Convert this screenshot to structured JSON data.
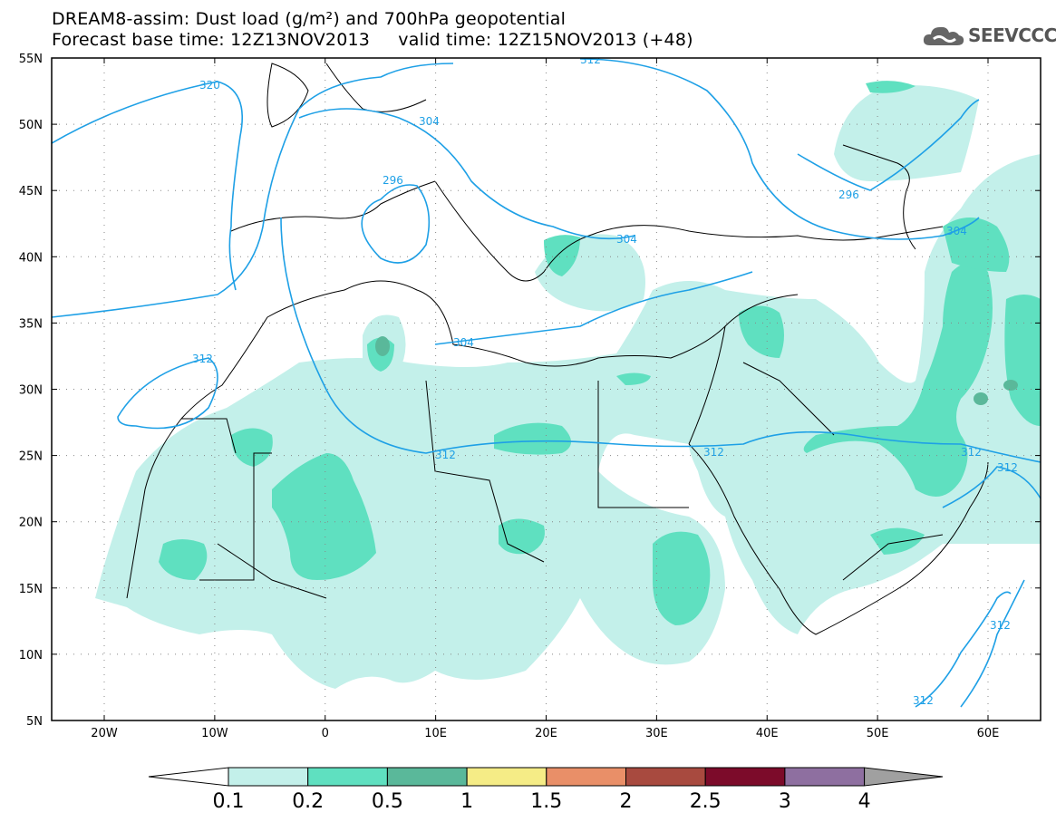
{
  "title": {
    "line1": "DREAM8-assim: Dust load (g/m²) and 700hPa geopotential",
    "line2": "Forecast base time: 12Z13NOV2013     valid time: 12Z15NOV2013 (+48)"
  },
  "logo": {
    "text": "SEEVCCC",
    "icon": "cloud-icon"
  },
  "axes": {
    "lat_labels": [
      "55N",
      "50N",
      "45N",
      "40N",
      "35N",
      "30N",
      "25N",
      "20N",
      "15N",
      "10N",
      "5N"
    ],
    "lon_labels": [
      "20W",
      "10W",
      "0",
      "10E",
      "20E",
      "30E",
      "40E",
      "50E",
      "60E"
    ]
  },
  "contours": {
    "labels": [
      "320",
      "304",
      "296",
      "304",
      "304",
      "312",
      "312",
      "312",
      "312",
      "296",
      "304",
      "312",
      "312",
      "312",
      "312"
    ]
  },
  "colorbar": {
    "ticks": [
      "0.1",
      "0.2",
      "0.5",
      "1",
      "1.5",
      "2",
      "2.5",
      "3",
      "4"
    ],
    "colors": [
      "#ffffff",
      "#c3f0ea",
      "#5fe0c0",
      "#5ab89a",
      "#f5ec86",
      "#e98f68",
      "#a84a3f",
      "#7c0b2a",
      "#8e6fa0",
      "#a0a0a0"
    ]
  },
  "map_colors": {
    "dust_light": "#c3f0ea",
    "dust_medium": "#5fe0c0",
    "dust_heavy": "#5ab89a",
    "contour": "#1ea0e6",
    "coast": "#000000"
  }
}
